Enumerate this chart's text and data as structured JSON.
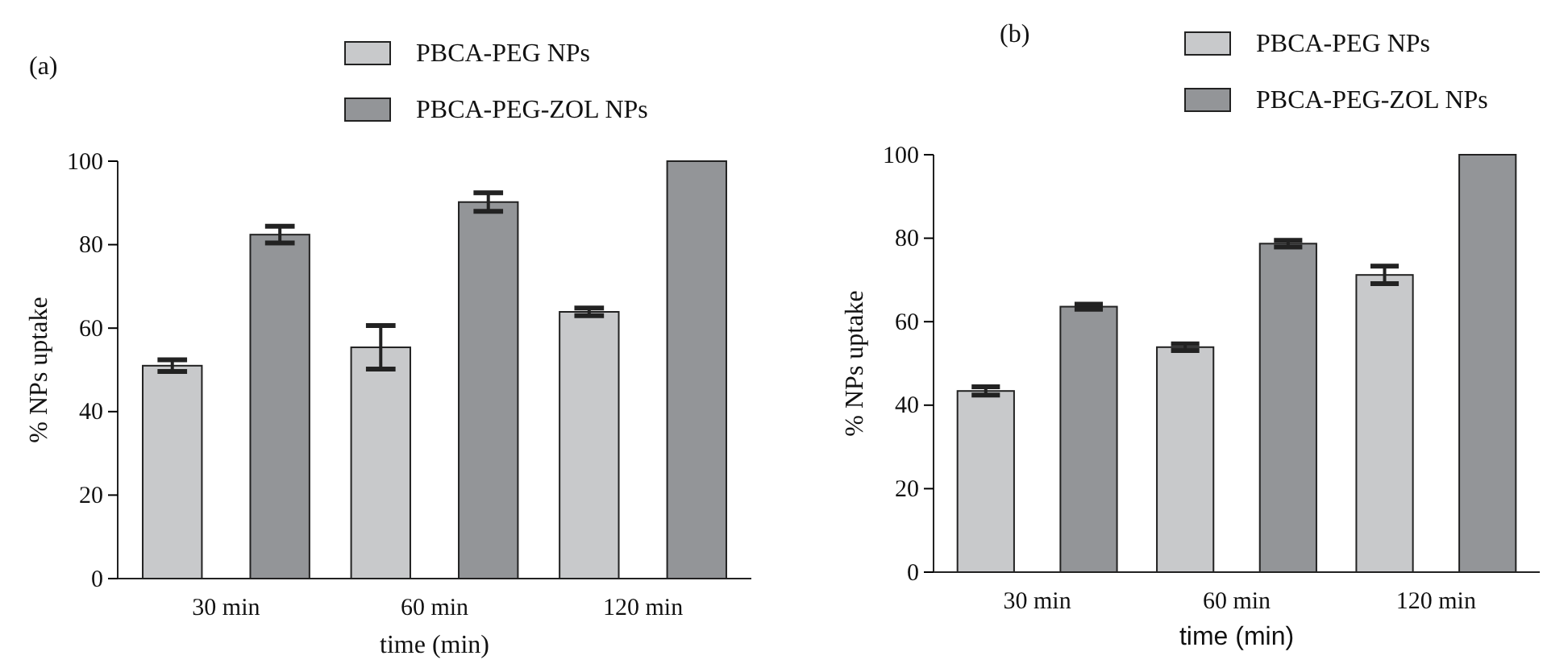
{
  "chart_data": [
    {
      "type": "bar",
      "title": "(a)",
      "xlabel": "time (min)",
      "ylabel": "% NPs uptake",
      "categories": [
        "30 min",
        "60 min",
        "120 min"
      ],
      "series": [
        {
          "name": "PBCA-PEG NPs",
          "color": "#c8c9cb",
          "values": [
            51.0,
            55.4,
            63.9
          ],
          "errors": [
            1.4,
            5.2,
            0.9
          ]
        },
        {
          "name": "PBCA-PEG-ZOL NPs",
          "color": "#939598",
          "values": [
            82.4,
            90.2,
            100
          ],
          "errors": [
            2,
            2.2,
            null
          ]
        }
      ],
      "ylim": [
        0,
        100
      ],
      "yticks": [
        0,
        20,
        40,
        60,
        80,
        100
      ],
      "grid": false,
      "legend": "top"
    },
    {
      "type": "bar",
      "title": "(b)",
      "xlabel": "time (min)",
      "ylabel": "% NPs uptake",
      "categories": [
        "30 min",
        "60 min",
        "120 min"
      ],
      "series": [
        {
          "name": "PBCA-PEG NPs",
          "color": "#c8c9cb",
          "values": [
            43.4,
            53.9,
            71.2
          ],
          "errors": [
            1,
            0.8,
            2.1
          ]
        },
        {
          "name": "PBCA-PEG-ZOL NPs",
          "color": "#939598",
          "values": [
            63.6,
            78.7,
            100
          ],
          "errors": [
            0.6,
            0.8,
            null
          ]
        }
      ],
      "ylim": [
        0,
        100
      ],
      "yticks": [
        0,
        20,
        40,
        60,
        80,
        100
      ],
      "grid": false,
      "legend": "top"
    }
  ]
}
